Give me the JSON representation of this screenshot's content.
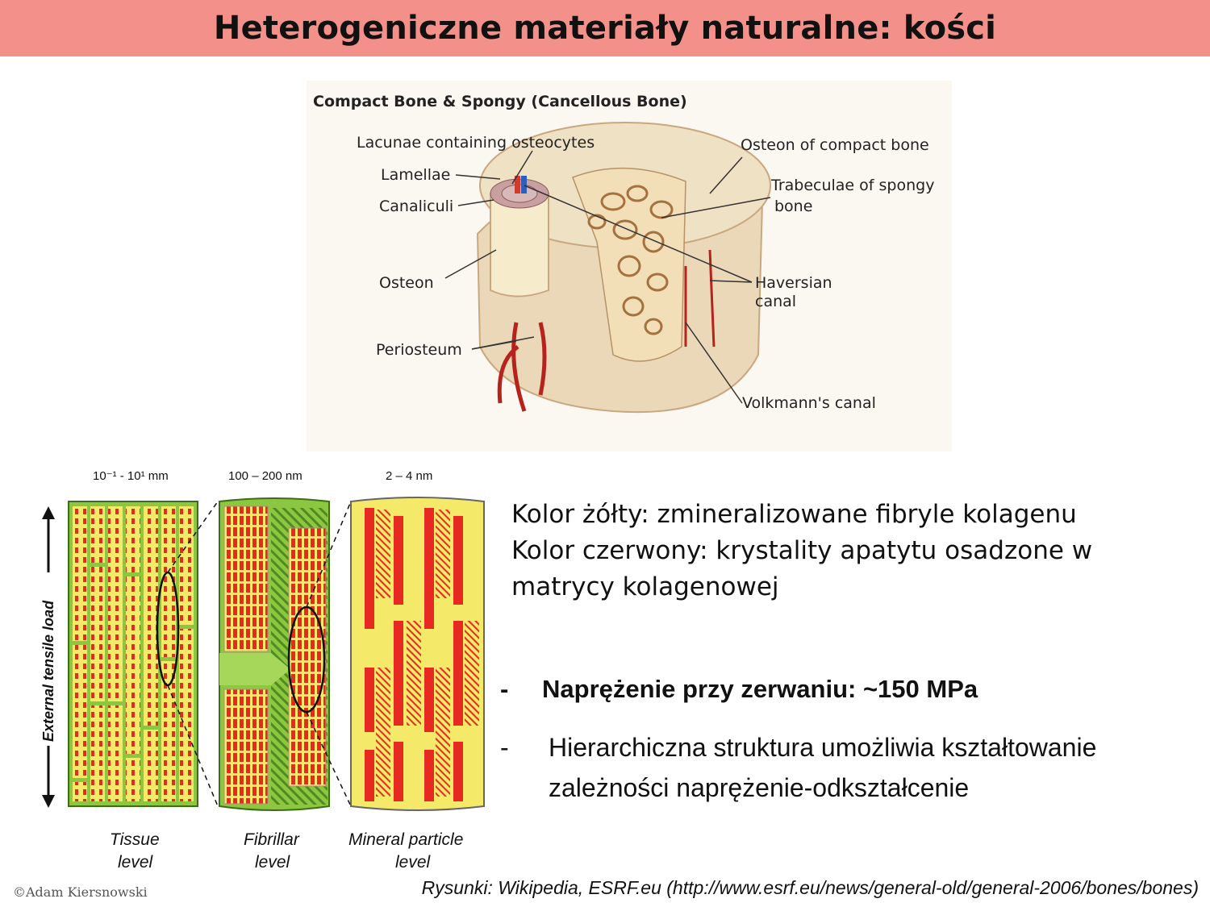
{
  "title": "Heterogeniczne materiały naturalne: kości",
  "bone_figure": {
    "heading": "Compact Bone & Spongy (Cancellous Bone)",
    "labels": {
      "lacunae": "Lacunae containing osteocytes",
      "lamellae": "Lamellae",
      "canaliculi": "Canaliculi",
      "osteon": "Osteon",
      "periosteum": "Periosteum",
      "osteon_compact": "Osteon of compact bone",
      "trabeculae_1": "Trabeculae of  spongy",
      "trabeculae_2": "bone",
      "haversian_1": "Haversian",
      "haversian_2": "canal",
      "volkmann": "Volkmann's canal"
    }
  },
  "hierarchy_figure": {
    "scales": {
      "tissue": "10⁻¹ - 10¹ mm",
      "fibrillar": "100 – 200 nm",
      "mineral": "2 – 4 nm"
    },
    "levels": {
      "tissue_1": "Tissue",
      "tissue_2": "level",
      "fibrillar_1": "Fibrillar",
      "fibrillar_2": "level",
      "mineral_1": "Mineral particle",
      "mineral_2": "level"
    },
    "load_label": "External tensile load",
    "colors": {
      "green": "#8dc63f",
      "yellow": "#f5e96a",
      "red": "#e62a22"
    }
  },
  "legend": {
    "line1": "Kolor żółty: zmineralizowane fibryle kolagenu",
    "line2": "Kolor czerwony: krystality apatytu osadzone w",
    "line3": "matrycy kolagenowej"
  },
  "bullets": {
    "dash": "-",
    "b1": "Naprężenie przy zerwaniu: ~150 MPa",
    "b2_line1": "Hierarchiczna struktura umożliwia kształtowanie",
    "b2_line2": "zależności naprężenie-odkształcenie"
  },
  "copyright": "©Adam Kiersnowski",
  "source": "Rysunki: Wikipedia, ESRF.eu (http://www.esrf.eu/news/general-old/general-2006/bones/bones)"
}
